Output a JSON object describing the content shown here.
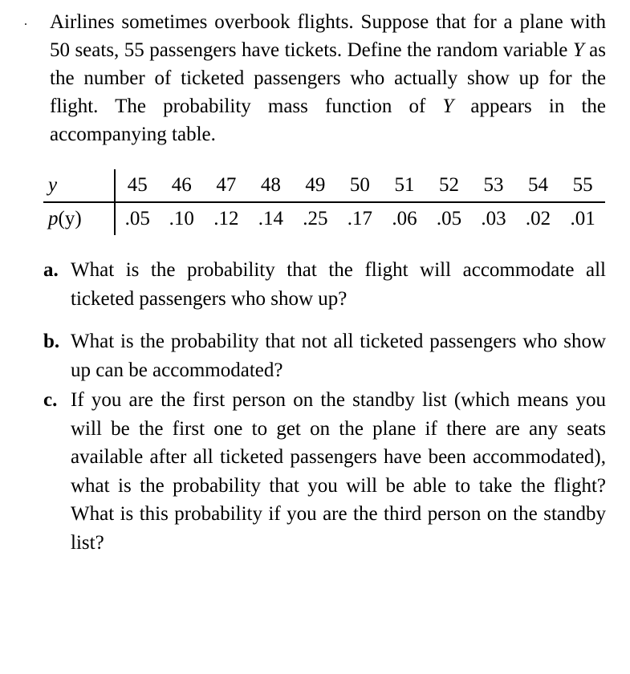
{
  "intro": {
    "dot": ".",
    "text_pre": "Airlines sometimes overbook flights. Suppose that for a plane with 50 seats, 55 passengers have tickets. Define the random variable ",
    "var_y": "Y",
    "text_mid": " as the number of ticketed passengers who actually show up for the flight. The probability mass func­tion of ",
    "var_y2": "Y",
    "text_post": " appears in the accompanying table."
  },
  "table": {
    "row1_label": "y",
    "row2_pre": "p",
    "row2_arg": "(y)",
    "y": [
      "45",
      "46",
      "47",
      "48",
      "49",
      "50",
      "51",
      "52",
      "53",
      "54",
      "55"
    ],
    "p": [
      ".05",
      ".10",
      ".12",
      ".14",
      ".25",
      ".17",
      ".06",
      ".05",
      ".03",
      ".02",
      ".01"
    ]
  },
  "questions": {
    "a": {
      "marker": "a.",
      "text": "What is the probability that the flight will accommodate all ticketed passengers who show up?"
    },
    "b": {
      "marker": "b.",
      "text": "What is the probability that not all ticketed passengers who show up can be accommodated?"
    },
    "c": {
      "marker": "c.",
      "text": "If you are the first person on the standby list (which means you will be the first one to get on the plane if there are any seats available after all ticketed passengers have been accommodated), what is the probability that you will be able to take the flight? What is this probability if you are the third person on the standby list?"
    }
  }
}
